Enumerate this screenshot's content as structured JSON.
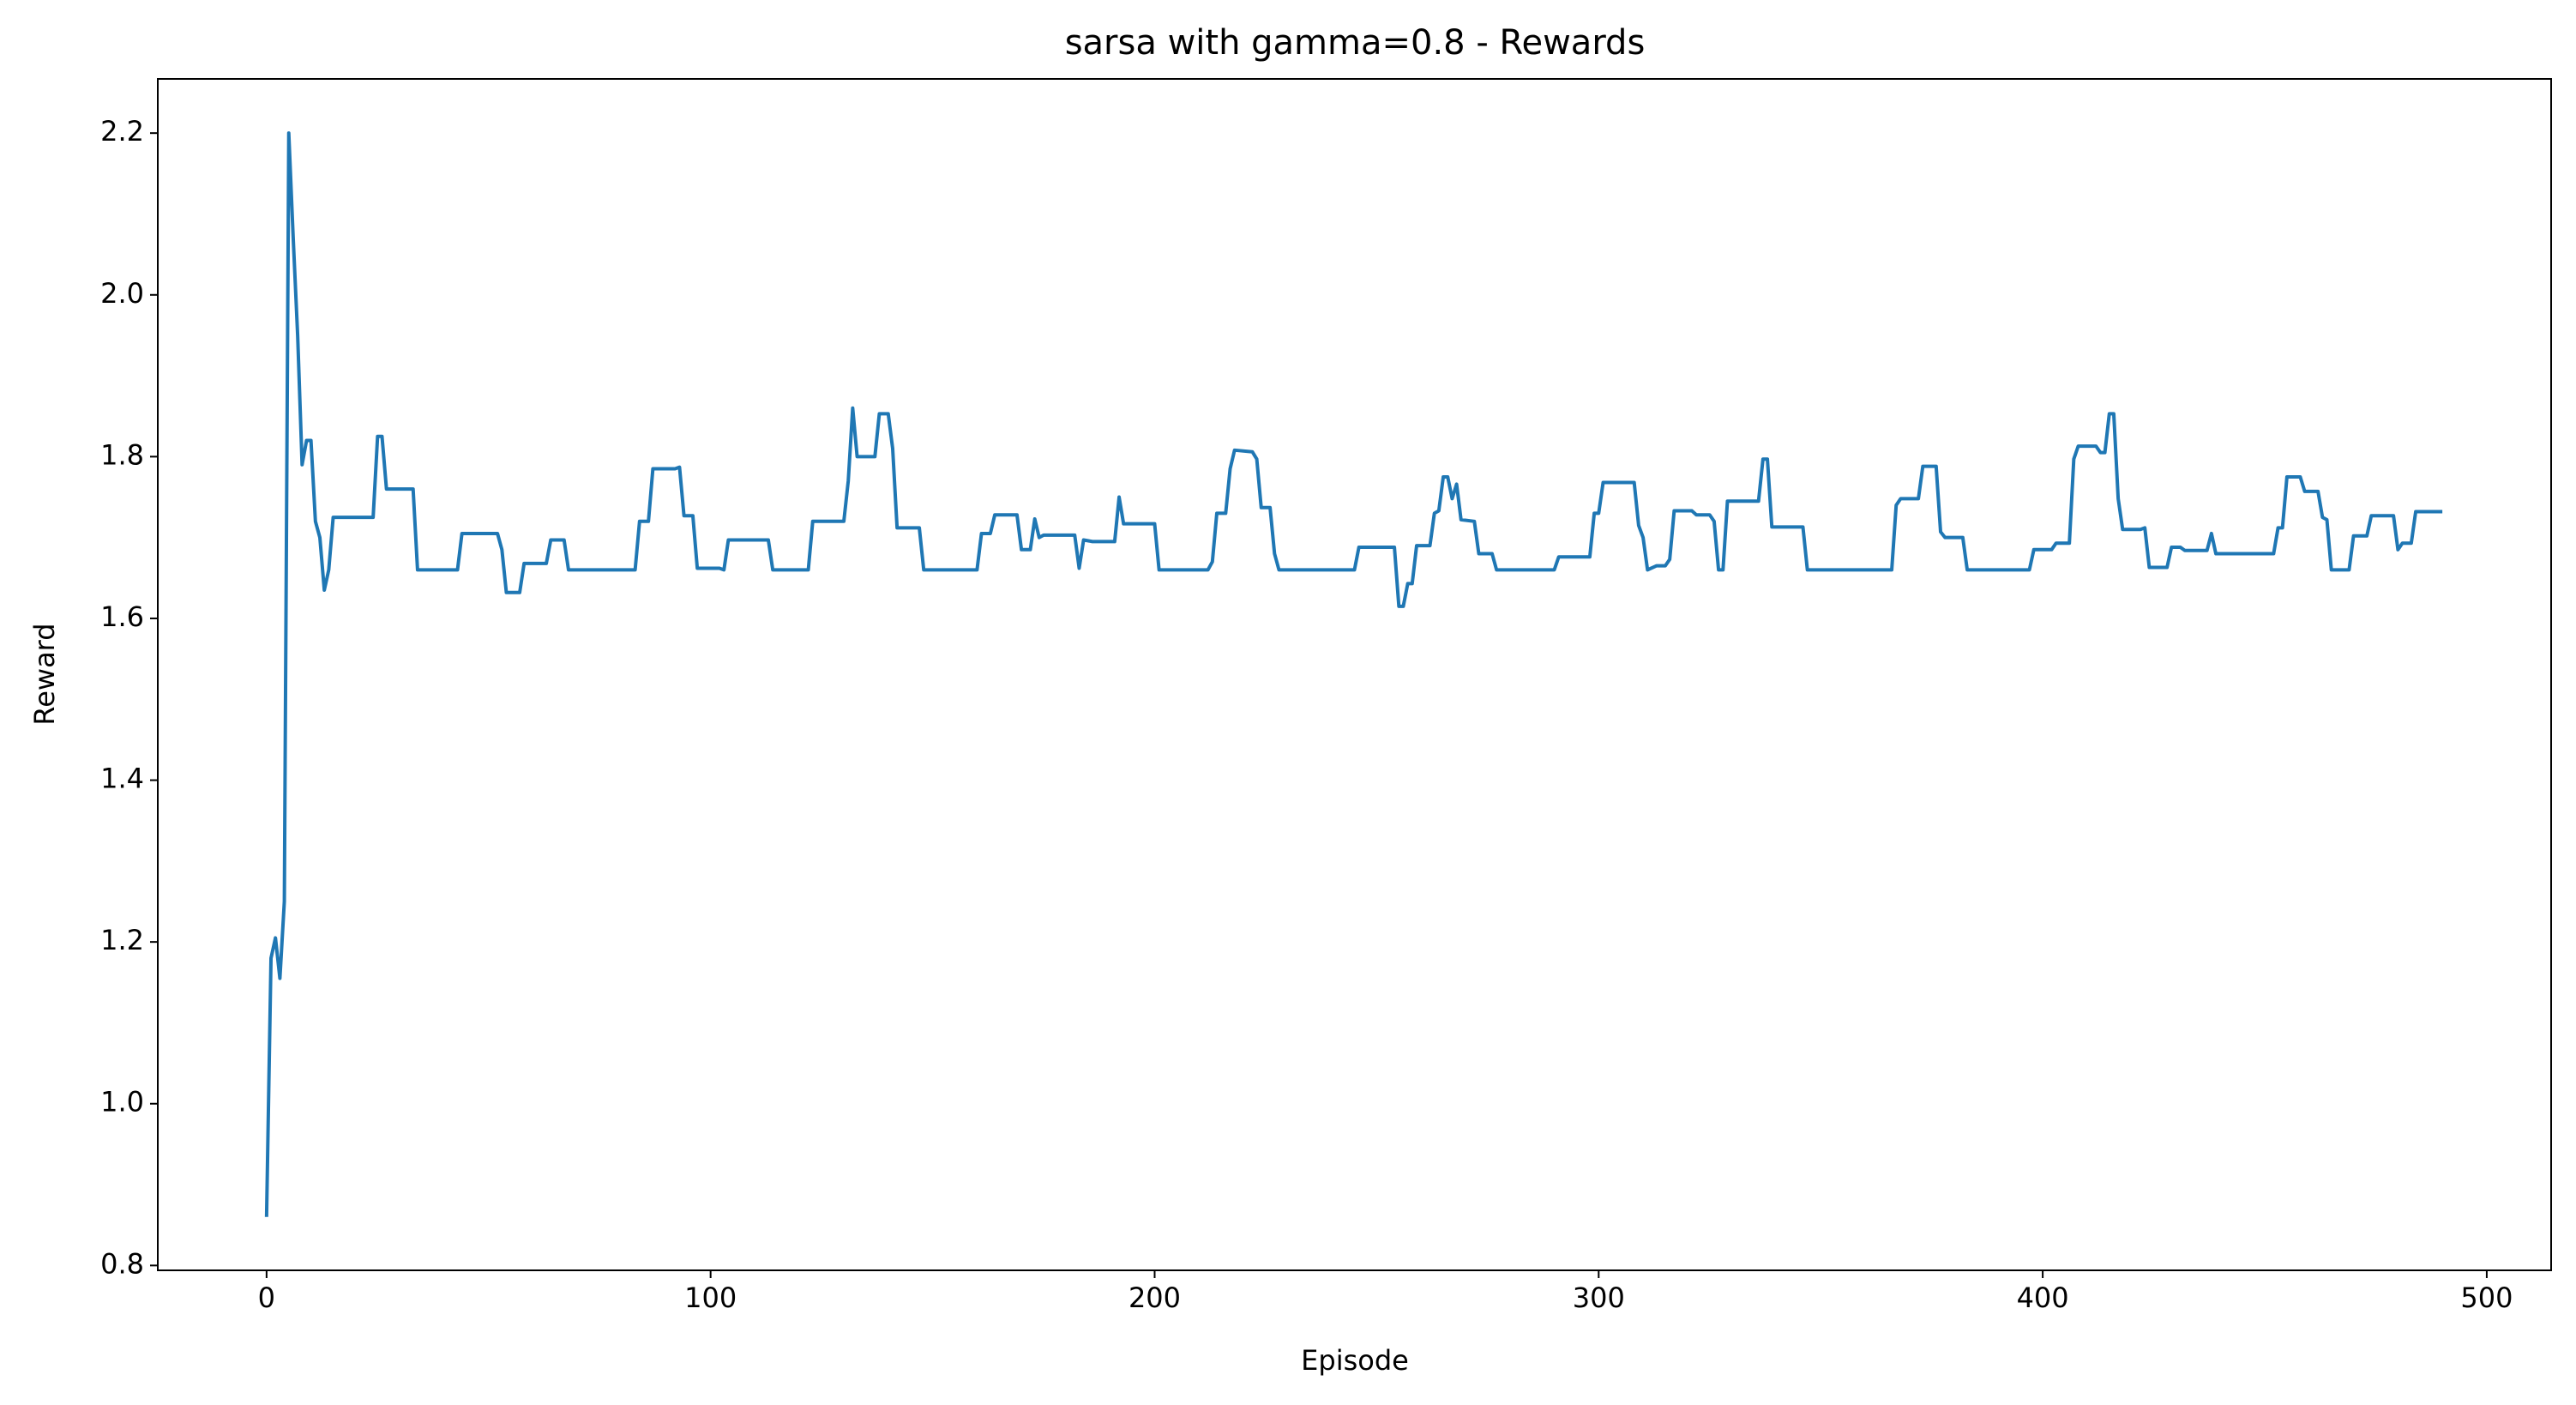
{
  "chart_data": {
    "type": "line",
    "title": "sarsa with gamma=0.8 - Rewards",
    "x_label": "Episode",
    "y_label": "Reward",
    "color": "#1f77b4",
    "x": [
      0,
      1,
      2,
      3,
      4,
      5,
      6,
      7,
      8,
      9,
      10,
      11,
      12,
      13,
      14,
      15,
      24,
      25,
      26,
      27,
      33,
      34,
      43,
      44,
      52,
      53,
      54,
      57,
      58,
      63,
      64,
      67,
      68,
      83,
      84,
      86,
      87,
      92,
      93,
      94,
      96,
      97,
      102,
      103,
      104,
      113,
      114,
      122,
      123,
      130,
      131,
      132,
      133,
      137,
      138,
      140,
      141,
      142,
      147,
      148,
      160,
      161,
      163,
      164,
      169,
      170,
      172,
      173,
      174,
      175,
      182,
      183,
      184,
      186,
      191,
      192,
      193,
      200,
      201,
      212,
      213,
      214,
      216,
      217,
      218,
      222,
      223,
      224,
      226,
      227,
      228,
      245,
      246,
      254,
      255,
      256,
      257,
      258,
      259,
      262,
      263,
      264,
      265,
      266,
      267,
      268,
      269,
      272,
      273,
      276,
      277,
      290,
      291,
      298,
      299,
      300,
      301,
      308,
      309,
      310,
      311,
      313,
      315,
      316,
      317,
      321,
      322,
      325,
      326,
      327,
      328,
      329,
      336,
      337,
      338,
      339,
      346,
      347,
      366,
      367,
      368,
      372,
      373,
      376,
      377,
      378,
      382,
      383,
      397,
      398,
      402,
      403,
      406,
      407,
      408,
      412,
      413,
      414,
      415,
      416,
      417,
      418,
      422,
      423,
      424,
      428,
      429,
      431,
      432,
      437,
      438,
      439,
      452,
      453,
      454,
      455,
      458,
      459,
      462,
      463,
      464,
      465,
      469,
      470,
      473,
      474,
      479,
      480,
      481,
      483,
      484,
      490
    ],
    "values": [
      0.86,
      1.18,
      1.205,
      1.155,
      1.25,
      2.2,
      2.07,
      1.95,
      1.79,
      1.82,
      1.82,
      1.72,
      1.7,
      1.635,
      1.66,
      1.725,
      1.725,
      1.825,
      1.825,
      1.76,
      1.76,
      1.66,
      1.66,
      1.705,
      1.705,
      1.685,
      1.632,
      1.632,
      1.668,
      1.668,
      1.697,
      1.697,
      1.66,
      1.66,
      1.72,
      1.72,
      1.785,
      1.785,
      1.787,
      1.727,
      1.727,
      1.662,
      1.662,
      1.66,
      1.697,
      1.697,
      1.66,
      1.66,
      1.72,
      1.72,
      1.77,
      1.86,
      1.8,
      1.8,
      1.853,
      1.853,
      1.81,
      1.712,
      1.712,
      1.66,
      1.66,
      1.705,
      1.705,
      1.728,
      1.728,
      1.685,
      1.685,
      1.723,
      1.7,
      1.703,
      1.703,
      1.662,
      1.697,
      1.695,
      1.695,
      1.75,
      1.717,
      1.717,
      1.66,
      1.66,
      1.67,
      1.73,
      1.73,
      1.785,
      1.808,
      1.806,
      1.797,
      1.737,
      1.737,
      1.68,
      1.66,
      1.66,
      1.688,
      1.688,
      1.615,
      1.615,
      1.643,
      1.643,
      1.69,
      1.69,
      1.73,
      1.733,
      1.775,
      1.775,
      1.748,
      1.766,
      1.722,
      1.72,
      1.68,
      1.68,
      1.66,
      1.66,
      1.676,
      1.676,
      1.73,
      1.73,
      1.768,
      1.768,
      1.715,
      1.7,
      1.66,
      1.665,
      1.665,
      1.673,
      1.733,
      1.733,
      1.728,
      1.728,
      1.72,
      1.66,
      1.66,
      1.745,
      1.745,
      1.797,
      1.797,
      1.713,
      1.713,
      1.66,
      1.66,
      1.74,
      1.748,
      1.748,
      1.788,
      1.788,
      1.707,
      1.7,
      1.7,
      1.66,
      1.66,
      1.685,
      1.685,
      1.693,
      1.693,
      1.797,
      1.813,
      1.813,
      1.805,
      1.805,
      1.853,
      1.853,
      1.748,
      1.71,
      1.71,
      1.712,
      1.663,
      1.663,
      1.688,
      1.688,
      1.684,
      1.684,
      1.705,
      1.68,
      1.68,
      1.712,
      1.712,
      1.775,
      1.775,
      1.757,
      1.757,
      1.725,
      1.722,
      1.66,
      1.66,
      1.702,
      1.702,
      1.727,
      1.727,
      1.685,
      1.693,
      1.693,
      1.732,
      1.732
    ],
    "xlim": [
      -24.5,
      514.5
    ],
    "xticks": [
      0,
      100,
      200,
      300,
      400,
      500
    ],
    "ylim": [
      0.794,
      2.267
    ],
    "yticks": [
      0.8,
      {
        "value": 1,
        "label": "1.0"
      },
      1.2,
      1.4,
      1.6,
      1.8,
      {
        "value": 2,
        "label": "2.0"
      },
      2.2
    ]
  }
}
